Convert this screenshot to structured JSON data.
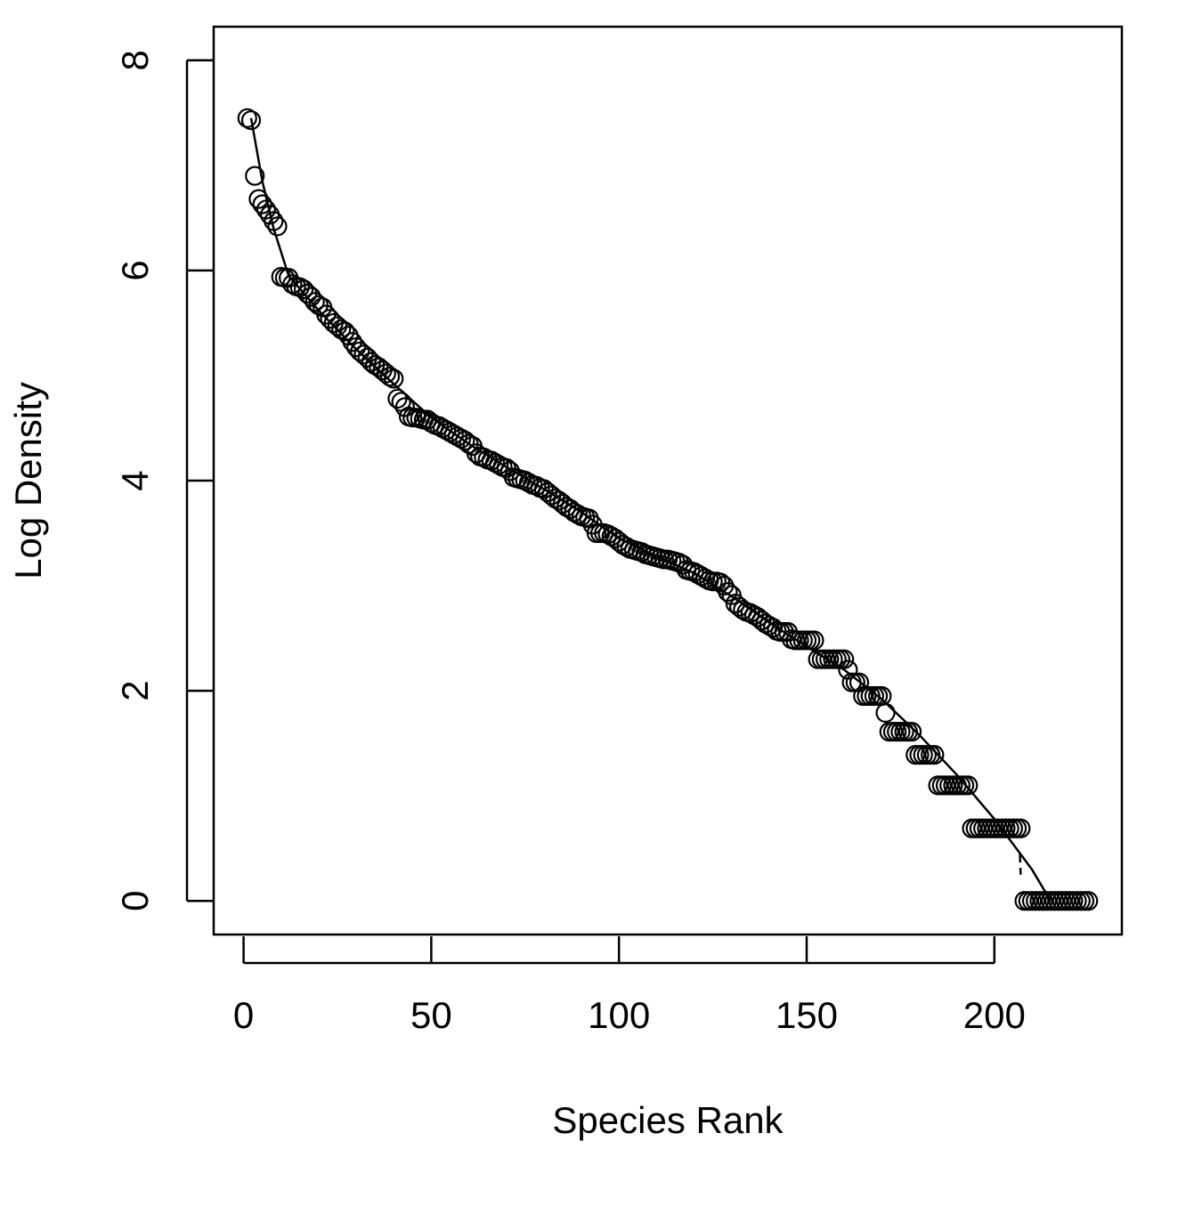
{
  "chart_data": {
    "type": "scatter",
    "x_label": "Species Rank",
    "y_label": "Log Density",
    "xlim": [
      -7.96,
      233.96
    ],
    "ylim": [
      -0.32,
      8.32
    ],
    "xticks": [
      0,
      50,
      100,
      150,
      200
    ],
    "yticks": [
      0,
      2,
      4,
      6,
      8
    ],
    "color": "#000000",
    "x": [
      1,
      2,
      3,
      4,
      5,
      6,
      7,
      8,
      9,
      10,
      11,
      12,
      13,
      14,
      15,
      16,
      17,
      18,
      19,
      20,
      21,
      22,
      23,
      24,
      25,
      26,
      27,
      28,
      29,
      30,
      31,
      32,
      33,
      34,
      35,
      36,
      37,
      38,
      39,
      40,
      41,
      42,
      43,
      44,
      45,
      46,
      47,
      48,
      49,
      50,
      51,
      52,
      53,
      54,
      55,
      56,
      57,
      58,
      59,
      60,
      61,
      62,
      63,
      64,
      65,
      66,
      67,
      68,
      69,
      70,
      71,
      72,
      73,
      74,
      75,
      76,
      77,
      78,
      79,
      80,
      81,
      82,
      83,
      84,
      85,
      86,
      87,
      88,
      89,
      90,
      91,
      92,
      93,
      94,
      95,
      96,
      97,
      98,
      99,
      100,
      101,
      102,
      103,
      104,
      105,
      106,
      107,
      108,
      109,
      110,
      111,
      112,
      113,
      114,
      115,
      116,
      117,
      118,
      119,
      120,
      121,
      122,
      123,
      124,
      125,
      126,
      127,
      128,
      129,
      130,
      131,
      132,
      133,
      134,
      135,
      136,
      137,
      138,
      139,
      140,
      141,
      142,
      143,
      144,
      145,
      146,
      147,
      148,
      149,
      150,
      151,
      152,
      153,
      154,
      155,
      156,
      157,
      158,
      159,
      160,
      161,
      162,
      163,
      164,
      165,
      166,
      167,
      168,
      169,
      170,
      171,
      172,
      173,
      174,
      175,
      176,
      177,
      178,
      179,
      180,
      181,
      182,
      183,
      184,
      185,
      186,
      187,
      188,
      189,
      190,
      191,
      192,
      193,
      194,
      195,
      196,
      197,
      198,
      199,
      200,
      201,
      202,
      203,
      204,
      205,
      206,
      207,
      208,
      209,
      210,
      211,
      212,
      213,
      214,
      215,
      216,
      217,
      218,
      219,
      220,
      221,
      222,
      223,
      224,
      225
    ],
    "values": [
      7.45,
      7.43,
      6.9,
      6.68,
      6.63,
      6.58,
      6.53,
      6.47,
      6.42,
      5.94,
      5.93,
      5.93,
      5.87,
      5.85,
      5.84,
      5.82,
      5.78,
      5.75,
      5.7,
      5.67,
      5.65,
      5.58,
      5.54,
      5.5,
      5.47,
      5.44,
      5.42,
      5.38,
      5.32,
      5.27,
      5.23,
      5.2,
      5.17,
      5.13,
      5.1,
      5.08,
      5.05,
      5.02,
      4.99,
      4.97,
      4.78,
      4.75,
      4.7,
      4.61,
      4.6,
      4.6,
      4.59,
      4.58,
      4.58,
      4.55,
      4.53,
      4.52,
      4.5,
      4.48,
      4.46,
      4.44,
      4.42,
      4.4,
      4.38,
      4.35,
      4.33,
      4.26,
      4.23,
      4.22,
      4.2,
      4.19,
      4.17,
      4.15,
      4.13,
      4.12,
      4.09,
      4.03,
      4.02,
      4.01,
      4.0,
      3.98,
      3.96,
      3.95,
      3.93,
      3.92,
      3.89,
      3.86,
      3.83,
      3.81,
      3.78,
      3.75,
      3.73,
      3.7,
      3.68,
      3.66,
      3.65,
      3.64,
      3.58,
      3.5,
      3.5,
      3.5,
      3.49,
      3.47,
      3.45,
      3.42,
      3.39,
      3.37,
      3.35,
      3.34,
      3.33,
      3.32,
      3.3,
      3.29,
      3.28,
      3.27,
      3.26,
      3.25,
      3.25,
      3.24,
      3.23,
      3.22,
      3.2,
      3.15,
      3.14,
      3.13,
      3.11,
      3.09,
      3.07,
      3.05,
      3.04,
      3.04,
      3.03,
      3.0,
      2.94,
      2.91,
      2.83,
      2.8,
      2.77,
      2.75,
      2.74,
      2.72,
      2.7,
      2.67,
      2.64,
      2.62,
      2.6,
      2.57,
      2.56,
      2.56,
      2.56,
      2.49,
      2.48,
      2.48,
      2.48,
      2.48,
      2.48,
      2.48,
      2.3,
      2.3,
      2.3,
      2.3,
      2.3,
      2.3,
      2.3,
      2.3,
      2.2,
      2.08,
      2.08,
      2.08,
      1.95,
      1.95,
      1.95,
      1.95,
      1.95,
      1.95,
      1.79,
      1.61,
      1.61,
      1.61,
      1.61,
      1.61,
      1.61,
      1.61,
      1.39,
      1.39,
      1.39,
      1.39,
      1.39,
      1.39,
      1.1,
      1.1,
      1.1,
      1.1,
      1.1,
      1.1,
      1.1,
      1.1,
      1.1,
      0.69,
      0.69,
      0.69,
      0.69,
      0.69,
      0.69,
      0.69,
      0.69,
      0.69,
      0.69,
      0.69,
      0.69,
      0.69,
      0.69,
      0,
      0,
      0,
      0,
      0,
      0,
      0,
      0,
      0,
      0,
      0,
      0,
      0,
      0,
      0,
      0,
      0,
      0
    ],
    "lines": [
      {
        "x": [
          2,
          5,
          8,
          12,
          20,
          30,
          40,
          50,
          60,
          70,
          80,
          90,
          100,
          110,
          120,
          130,
          140,
          150,
          160,
          170,
          180,
          190,
          200,
          210,
          215
        ],
        "values": [
          7.45,
          6.85,
          6.4,
          5.95,
          5.62,
          5.25,
          4.92,
          4.6,
          4.35,
          4.13,
          3.92,
          3.7,
          3.45,
          3.28,
          3.12,
          2.9,
          2.65,
          2.42,
          2.2,
          1.92,
          1.58,
          1.2,
          0.78,
          0.3,
          0
        ]
      },
      {
        "x": [
          206.8,
          207
        ],
        "values": [
          0.45,
          0.25
        ],
        "dashed": true
      }
    ]
  }
}
